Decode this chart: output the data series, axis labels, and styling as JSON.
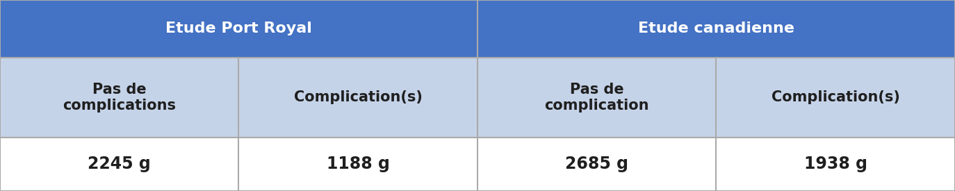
{
  "header_row": [
    "Etude Port Royal",
    "Etude canadienne"
  ],
  "subheader_row": [
    "Pas de\ncomplications",
    "Complication(s)",
    "Pas de\ncomplication",
    "Complication(s)"
  ],
  "data_row": [
    "2245 g",
    "1188 g",
    "2685 g",
    "1938 g"
  ],
  "header_bg": "#4472C4",
  "header_text_color": "#FFFFFF",
  "subheader_bg": "#C5D3E8",
  "subheader_text_color": "#1F1F1F",
  "data_bg": "#FFFFFF",
  "data_text_color": "#1F1F1F",
  "border_color": "#AAAAAA",
  "fig_width": 13.74,
  "fig_height": 2.75,
  "header_fontsize": 16,
  "subheader_fontsize": 15,
  "data_fontsize": 17
}
